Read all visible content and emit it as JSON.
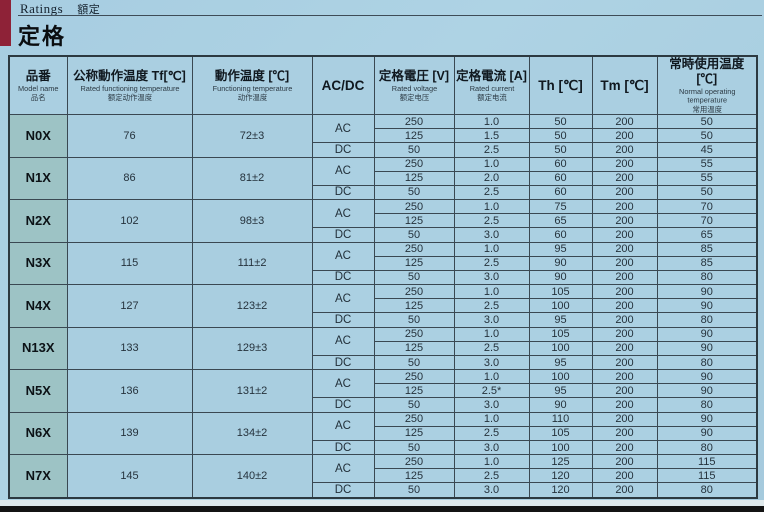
{
  "header": {
    "title_en": "Ratings",
    "title_zh": "額定",
    "title_main": "定格"
  },
  "colors": {
    "accent_red": "#8e2237",
    "page_bg": "#aed3e4",
    "model_col_bg": "#9dc3c5",
    "grid": "#3a4852"
  },
  "table": {
    "columns": {
      "model": {
        "jp": "品番",
        "en": "Model name",
        "zh": "品名"
      },
      "rated_functioning_temp": {
        "jp": "公称動作温度 Tf[℃]",
        "en": "Rated functioning temperature",
        "zh": "额定动作温度"
      },
      "functioning_temp": {
        "jp": "動作温度 [℃]",
        "en": "Functioning temperature",
        "zh": "动作温度"
      },
      "acdc": {
        "label": "AC/DC"
      },
      "rated_voltage": {
        "jp": "定格電圧 [V]",
        "en": "Rated voltage",
        "zh": "额定电压"
      },
      "rated_current": {
        "jp": "定格電流 [A]",
        "en": "Rated current",
        "zh": "额定电流"
      },
      "th": {
        "label": "Th [℃]"
      },
      "tm": {
        "label": "Tm [℃]"
      },
      "normal_operating_temp": {
        "jp": "常時使用温度 [℃]",
        "en": "Normal operating temperature",
        "zh": "常用温度"
      }
    },
    "groups": [
      {
        "model": "N0X",
        "tf": "76",
        "ft": "72±3",
        "rows": [
          {
            "acdc": "AC",
            "v": "250",
            "a": "1.0",
            "th": "50",
            "tm": "200",
            "nt": "50"
          },
          {
            "acdc": "",
            "v": "125",
            "a": "1.5",
            "th": "50",
            "tm": "200",
            "nt": "50"
          },
          {
            "acdc": "DC",
            "v": "50",
            "a": "2.5",
            "th": "50",
            "tm": "200",
            "nt": "45"
          }
        ]
      },
      {
        "model": "N1X",
        "tf": "86",
        "ft": "81±2",
        "rows": [
          {
            "acdc": "AC",
            "v": "250",
            "a": "1.0",
            "th": "60",
            "tm": "200",
            "nt": "55"
          },
          {
            "acdc": "",
            "v": "125",
            "a": "2.0",
            "th": "60",
            "tm": "200",
            "nt": "55"
          },
          {
            "acdc": "DC",
            "v": "50",
            "a": "2.5",
            "th": "60",
            "tm": "200",
            "nt": "50"
          }
        ]
      },
      {
        "model": "N2X",
        "tf": "102",
        "ft": "98±3",
        "rows": [
          {
            "acdc": "AC",
            "v": "250",
            "a": "1.0",
            "th": "75",
            "tm": "200",
            "nt": "70"
          },
          {
            "acdc": "",
            "v": "125",
            "a": "2.5",
            "th": "65",
            "tm": "200",
            "nt": "70"
          },
          {
            "acdc": "DC",
            "v": "50",
            "a": "3.0",
            "th": "60",
            "tm": "200",
            "nt": "65"
          }
        ]
      },
      {
        "model": "N3X",
        "tf": "115",
        "ft": "111±2",
        "rows": [
          {
            "acdc": "AC",
            "v": "250",
            "a": "1.0",
            "th": "95",
            "tm": "200",
            "nt": "85"
          },
          {
            "acdc": "",
            "v": "125",
            "a": "2.5",
            "th": "90",
            "tm": "200",
            "nt": "85"
          },
          {
            "acdc": "DC",
            "v": "50",
            "a": "3.0",
            "th": "90",
            "tm": "200",
            "nt": "80"
          }
        ]
      },
      {
        "model": "N4X",
        "tf": "127",
        "ft": "123±2",
        "rows": [
          {
            "acdc": "AC",
            "v": "250",
            "a": "1.0",
            "th": "105",
            "tm": "200",
            "nt": "90"
          },
          {
            "acdc": "",
            "v": "125",
            "a": "2.5",
            "th": "100",
            "tm": "200",
            "nt": "90"
          },
          {
            "acdc": "DC",
            "v": "50",
            "a": "3.0",
            "th": "95",
            "tm": "200",
            "nt": "80"
          }
        ]
      },
      {
        "model": "N13X",
        "tf": "133",
        "ft": "129±3",
        "rows": [
          {
            "acdc": "AC",
            "v": "250",
            "a": "1.0",
            "th": "105",
            "tm": "200",
            "nt": "90"
          },
          {
            "acdc": "",
            "v": "125",
            "a": "2.5",
            "th": "100",
            "tm": "200",
            "nt": "90"
          },
          {
            "acdc": "DC",
            "v": "50",
            "a": "3.0",
            "th": "95",
            "tm": "200",
            "nt": "80"
          }
        ]
      },
      {
        "model": "N5X",
        "tf": "136",
        "ft": "131±2",
        "rows": [
          {
            "acdc": "AC",
            "v": "250",
            "a": "1.0",
            "th": "100",
            "tm": "200",
            "nt": "90"
          },
          {
            "acdc": "",
            "v": "125",
            "a": "2.5*",
            "th": "95",
            "tm": "200",
            "nt": "90"
          },
          {
            "acdc": "DC",
            "v": "50",
            "a": "3.0",
            "th": "90",
            "tm": "200",
            "nt": "80"
          }
        ]
      },
      {
        "model": "N6X",
        "tf": "139",
        "ft": "134±2",
        "rows": [
          {
            "acdc": "AC",
            "v": "250",
            "a": "1.0",
            "th": "110",
            "tm": "200",
            "nt": "90"
          },
          {
            "acdc": "",
            "v": "125",
            "a": "2.5",
            "th": "105",
            "tm": "200",
            "nt": "90"
          },
          {
            "acdc": "DC",
            "v": "50",
            "a": "3.0",
            "th": "100",
            "tm": "200",
            "nt": "80"
          }
        ]
      },
      {
        "model": "N7X",
        "tf": "145",
        "ft": "140±2",
        "rows": [
          {
            "acdc": "AC",
            "v": "250",
            "a": "1.0",
            "th": "125",
            "tm": "200",
            "nt": "115"
          },
          {
            "acdc": "",
            "v": "125",
            "a": "2.5",
            "th": "120",
            "tm": "200",
            "nt": "115"
          },
          {
            "acdc": "DC",
            "v": "50",
            "a": "3.0",
            "th": "120",
            "tm": "200",
            "nt": "80"
          }
        ]
      }
    ]
  }
}
